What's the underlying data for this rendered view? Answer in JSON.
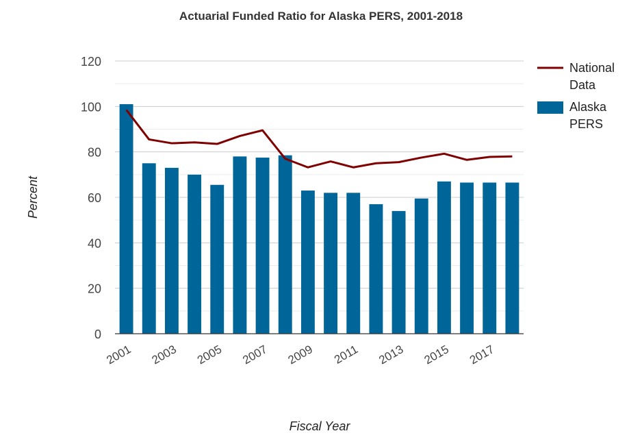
{
  "chart_data": {
    "type": "bar",
    "title": "Actuarial Funded Ratio for Alaska PERS, 2001-2018",
    "xlabel": "Fiscal Year",
    "ylabel": "Percent",
    "ylim": [
      0,
      120
    ],
    "yticks": [
      0,
      20,
      40,
      60,
      80,
      100,
      120
    ],
    "grid": true,
    "legend_position": "top-right",
    "categories": [
      "2001",
      "2002",
      "2003",
      "2004",
      "2005",
      "2006",
      "2007",
      "2008",
      "2009",
      "2010",
      "2011",
      "2012",
      "2013",
      "2014",
      "2015",
      "2016",
      "2017",
      "2018"
    ],
    "x_tick_labels": [
      "2001",
      "2003",
      "2005",
      "2007",
      "2009",
      "2011",
      "2013",
      "2015",
      "2017"
    ],
    "series": [
      {
        "name": "Alaska PERS",
        "type": "bar",
        "color": "#006699",
        "values": [
          101,
          75,
          73,
          70,
          65.5,
          78,
          77.5,
          78.5,
          63,
          62,
          62,
          57,
          54,
          59.5,
          67,
          66.5,
          66.5,
          66.5
        ]
      },
      {
        "name": "National Data",
        "type": "line",
        "color": "#800000",
        "values": [
          98.5,
          85.5,
          83.8,
          84.2,
          83.5,
          87,
          89.5,
          77,
          73.2,
          75.8,
          73.2,
          75,
          75.5,
          77.5,
          79.2,
          76.5,
          77.8,
          78
        ]
      }
    ],
    "legend_labels": [
      {
        "lines": [
          "National",
          "Data"
        ]
      },
      {
        "lines": [
          "Alaska",
          "PERS"
        ]
      }
    ]
  }
}
